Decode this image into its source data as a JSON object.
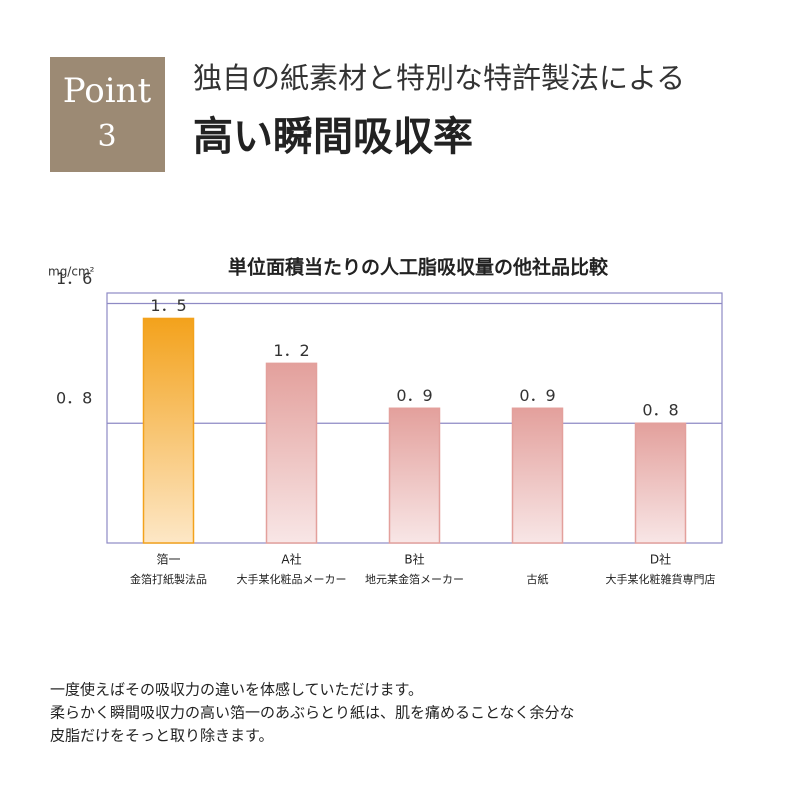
{
  "header": {
    "badge": [
      "Point",
      "3"
    ],
    "lead": "独自の紙素材と特別な特許製法による",
    "headline": "高い瞬間吸収率"
  },
  "chart_data": {
    "type": "bar",
    "title": "単位面積当たりの人工脂吸収量の他社品比較",
    "y_label": "mg/cm²",
    "categories": [
      "箔一",
      "A社",
      "B社",
      null,
      "D社"
    ],
    "descriptions": [
      "金箔打紙製法品",
      "大手某化粧品メーカー",
      "地元某金箔メーカー",
      "古紙",
      "大手某化粧雑貨専門店"
    ],
    "values": [
      1.5,
      1.2,
      0.9,
      0.9,
      0.8
    ],
    "value_labels": [
      "1．5",
      "1．2",
      "0．9",
      "0．9",
      "0．8"
    ],
    "colors": [
      "#f3a21c",
      "#e3a09c",
      "#e3a09c",
      "#e3a09c",
      "#e3a09c"
    ],
    "ylim": [
      0,
      1.67
    ],
    "yticks": [
      {
        "value": 0.8,
        "label": "0．8"
      },
      {
        "value": 1.6,
        "label": "1．6"
      }
    ],
    "grid": true
  },
  "body": [
    "一度使えばその吸収力の違いを体感していただけます。",
    "柔らかく瞬間吸収力の高い箔一のあぶらとり紙は、肌を痛めることなく余分な",
    "皮脂だけをそっと取り除きます。"
  ]
}
